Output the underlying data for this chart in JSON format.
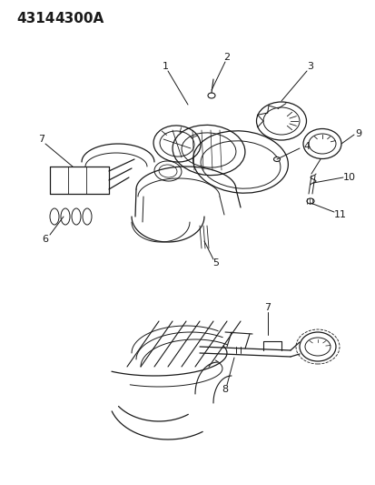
{
  "title1": "4314",
  "title2": "4300A",
  "bg_color": "#ffffff",
  "line_color": "#1a1a1a",
  "title_fontsize": 11,
  "label_fontsize": 8,
  "figsize": [
    4.14,
    5.33
  ],
  "dpi": 100
}
